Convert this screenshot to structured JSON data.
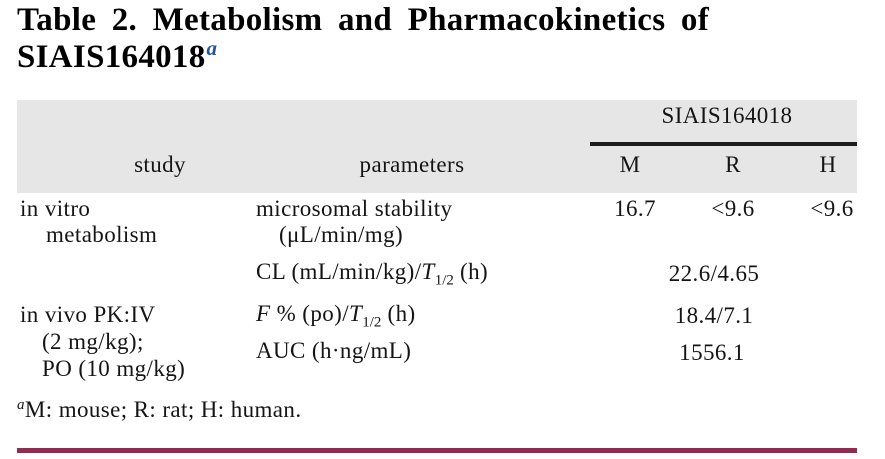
{
  "title": {
    "line1": "Table 2. Metabolism and Pharmacokinetics of",
    "line2": "SIAIS164018",
    "superscript": "a"
  },
  "table": {
    "group_header": "SIAIS164018",
    "column_headers": {
      "study": "study",
      "parameters": "parameters",
      "m": "M",
      "r": "R",
      "h": "H"
    },
    "rows": {
      "r1": {
        "study_line1": "in vitro",
        "study_line2": "metabolism",
        "param_line1": "microsomal stability",
        "param_line2": "(μL/min/mg)",
        "m": "16.7",
        "r": "<9.6",
        "h": "<9.6"
      },
      "r2": {
        "param": {
          "pre": "CL (mL/min/kg)/",
          "t": "T",
          "sub": "1/2",
          "post": " (h)"
        },
        "value": "22.6/4.65"
      },
      "r3": {
        "study_line1": "in vivo PK:IV",
        "study_line2": "(2 mg/kg);",
        "study_line3": "PO (10 mg/kg)",
        "param1": {
          "f": "F",
          "mid": " % (po)/",
          "t": "T",
          "sub": "1/2",
          "post": " (h)"
        },
        "value1": "18.4/7.1",
        "param2": "AUC (h·ng/mL)",
        "value2": "1556.1"
      }
    }
  },
  "footnote": {
    "marker": "a",
    "text": "M: mouse; R: rat; H: human."
  },
  "colors": {
    "title_superscript_blue": "#2753a3",
    "header_background": "#e6e6e6",
    "group_rule_black": "#1c1c1c",
    "bottom_rule_maroon": "#952a51"
  }
}
